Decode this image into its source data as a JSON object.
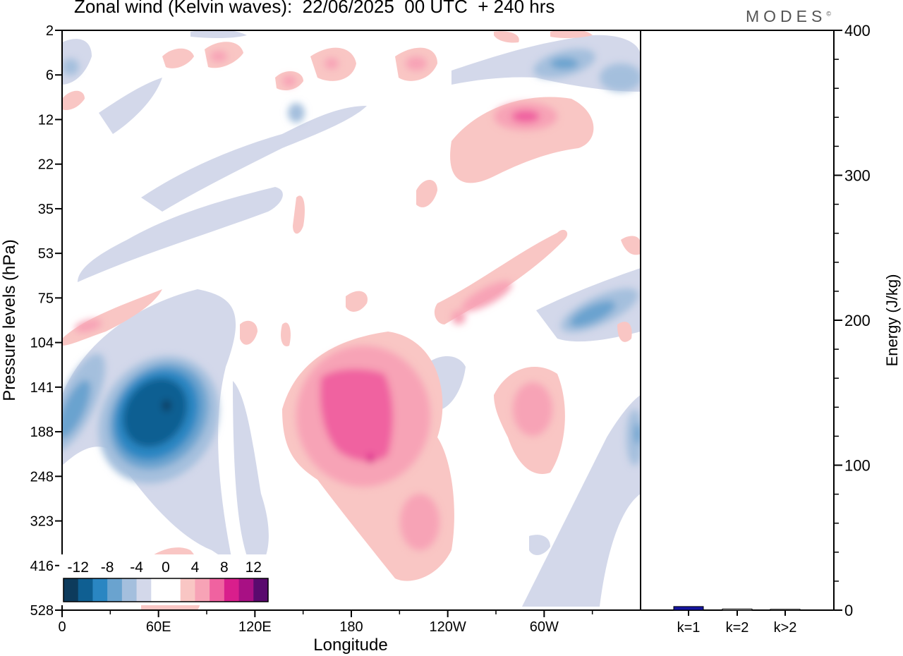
{
  "header": {
    "title": "Zonal wind (Kelvin waves):  22/06/2025  00 UTC  + 240 hrs",
    "brand": "MODES",
    "brand_mark": "©"
  },
  "colors": {
    "neg_12": "#0d3b5c",
    "neg_10": "#0f5f92",
    "neg_8": "#2a86c2",
    "neg_6": "#6aa3cf",
    "neg_4": "#a4bfdd",
    "neg_2": "#d3d8ea",
    "pos_2": "#f9c6c4",
    "pos_4": "#f7a3b6",
    "pos_6": "#f062a0",
    "pos_8": "#d91e8c",
    "pos_10": "#a81084",
    "pos_12": "#5a0a6e",
    "bar": "#1515a0"
  },
  "chart_data": [
    {
      "type": "heatmap",
      "title": "Zonal wind (Kelvin waves):  22/06/2025  00 UTC  + 240 hrs",
      "xlabel": "Longitude",
      "ylabel": "Pressure levels (hPa)",
      "x_ticks": [
        "0",
        "60E",
        "120E",
        "180",
        "120W",
        "60W"
      ],
      "x_tick_degrees": [
        0,
        60,
        120,
        180,
        240,
        300
      ],
      "xlim": [
        0,
        360
      ],
      "y_ticks": [
        "2",
        "6",
        "12",
        "22",
        "35",
        "53",
        "75",
        "104",
        "141",
        "188",
        "248",
        "323",
        "416",
        "528"
      ],
      "colorbar": {
        "labels": [
          "-12",
          "-8",
          "-4",
          "0",
          "4",
          "8",
          "12"
        ],
        "levels": [
          -12,
          -10,
          -8,
          -6,
          -4,
          -2,
          0,
          2,
          4,
          6,
          8,
          10,
          12
        ]
      },
      "features": [
        {
          "sign": "negative",
          "center_lon": 50,
          "center_level": "188",
          "peak": -12
        },
        {
          "sign": "negative",
          "center_lon": 10,
          "center_level": "188",
          "peak": -8
        },
        {
          "sign": "negative",
          "center_lon": 318,
          "center_level": "104",
          "peak": -6
        },
        {
          "sign": "negative",
          "center_lon": 315,
          "center_level": "6",
          "peak": -8
        },
        {
          "sign": "negative",
          "center_lon": 360,
          "center_level": "188",
          "peak": -8
        },
        {
          "sign": "positive",
          "center_lon": 188,
          "center_level": "188",
          "peak": 8
        },
        {
          "sign": "positive",
          "center_lon": 225,
          "center_level": "323",
          "peak": 6
        },
        {
          "sign": "positive",
          "center_lon": 292,
          "center_level": "188",
          "peak": 6
        },
        {
          "sign": "positive",
          "center_lon": 270,
          "center_level": "12",
          "peak": 6
        },
        {
          "sign": "positive",
          "center_lon": 265,
          "center_level": "75",
          "peak": 6
        },
        {
          "sign": "positive",
          "center_lon": 10,
          "center_level": "104",
          "peak": 6
        }
      ]
    },
    {
      "type": "bar",
      "categories": [
        "k=1",
        "k=2",
        "k>2"
      ],
      "values": [
        2.5,
        0.8,
        0.6
      ],
      "ylabel": "Energy (J/kg)",
      "ylim": [
        0,
        400
      ],
      "y_ticks": [
        "0",
        "100",
        "200",
        "300",
        "400"
      ]
    }
  ]
}
